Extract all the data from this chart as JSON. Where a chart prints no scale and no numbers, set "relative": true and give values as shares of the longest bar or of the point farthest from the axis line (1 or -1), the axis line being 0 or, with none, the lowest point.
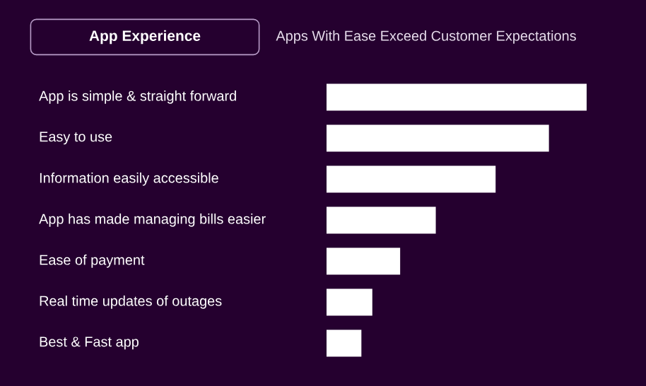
{
  "chart_data": {
    "type": "bar",
    "orientation": "horizontal",
    "relative": true,
    "title": "App Experience",
    "subtitle": "Apps With Ease Exceed Customer Expectations",
    "categories": [
      "App is simple & straight forward",
      "Easy to use",
      "Information easily accessible",
      "App has made managing bills easier",
      "Ease of payment",
      "Real time updates of outages",
      "Best & Fast app"
    ],
    "values": [
      1,
      0.855,
      0.65,
      0.42,
      0.283,
      0.176,
      0.134
    ],
    "color": "#ffffff"
  }
}
